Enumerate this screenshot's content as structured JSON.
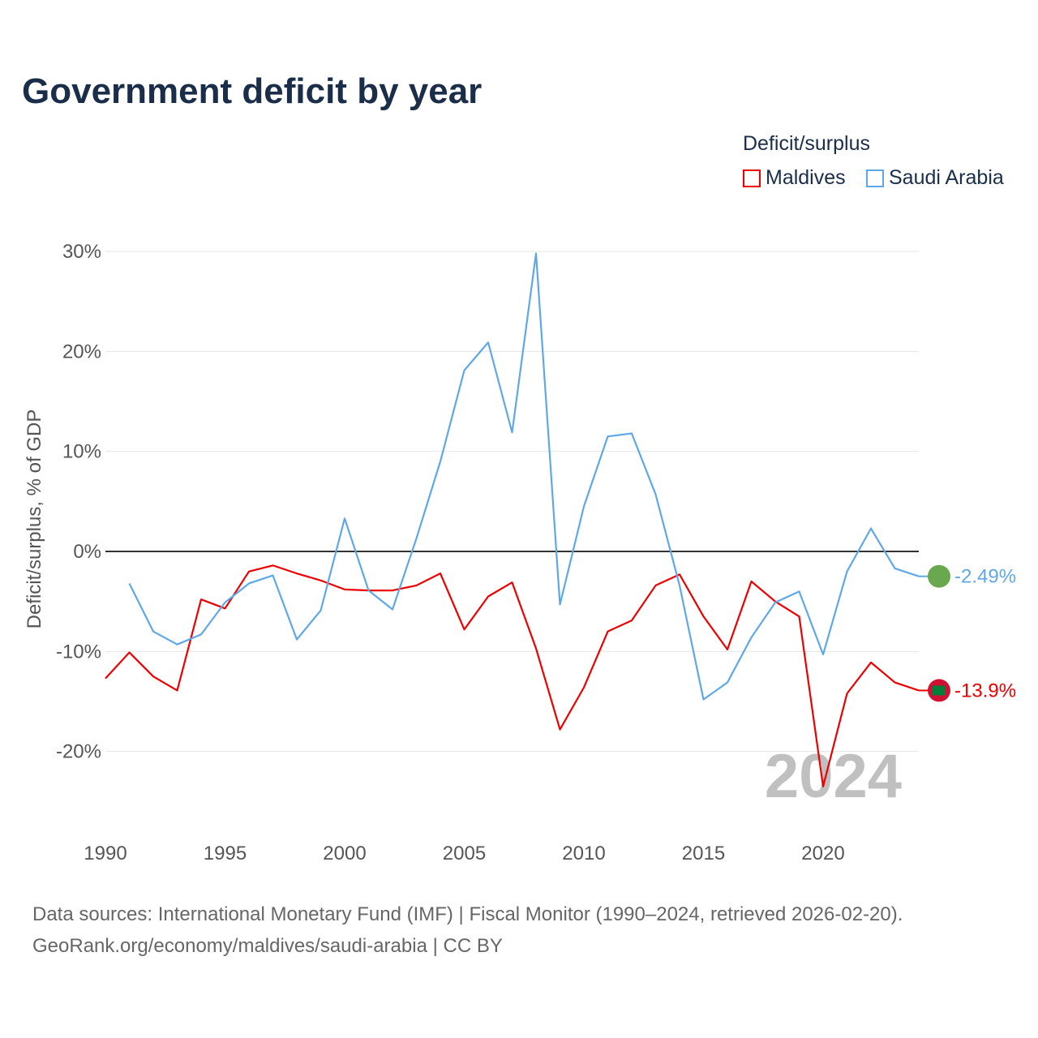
{
  "chart_data": {
    "type": "line",
    "title": "Government deficit by year",
    "ylabel": "Deficit/surplus, % of GDP",
    "xlabel": "",
    "legend_title": "Deficit/surplus",
    "legend_position": "top-right",
    "xlim": [
      1990,
      2024
    ],
    "ylim": [
      -27,
      32
    ],
    "xticks": [
      1990,
      1995,
      2000,
      2005,
      2010,
      2015,
      2020
    ],
    "xtick_labels": [
      "1990",
      "1995",
      "2000",
      "2005",
      "2010",
      "2015",
      "2020"
    ],
    "yticks": [
      30,
      20,
      10,
      0,
      -10,
      -20
    ],
    "ytick_labels": [
      "30%",
      "20%",
      "10%",
      "0%",
      "-10%",
      "-20%"
    ],
    "grid": true,
    "year_watermark": "2024",
    "series": [
      {
        "name": "Maldives",
        "color": "#ee0000",
        "end_label": "-13.9%",
        "x": [
          1990,
          1991,
          1992,
          1993,
          1994,
          1995,
          1996,
          1997,
          1998,
          1999,
          2000,
          2001,
          2002,
          2003,
          2004,
          2005,
          2006,
          2007,
          2008,
          2009,
          2010,
          2011,
          2012,
          2013,
          2014,
          2015,
          2016,
          2017,
          2018,
          2019,
          2020,
          2021,
          2022,
          2023,
          2024
        ],
        "values": [
          -12.7,
          -10.1,
          -12.5,
          -13.9,
          -4.8,
          -5.7,
          -2.0,
          -1.4,
          -2.2,
          -2.9,
          -3.8,
          -3.9,
          -3.9,
          -3.4,
          -2.2,
          -7.8,
          -4.5,
          -3.1,
          -9.7,
          -17.8,
          -13.6,
          -8.0,
          -6.9,
          -3.4,
          -2.3,
          -6.5,
          -9.8,
          -3.0,
          -5.0,
          -6.5,
          -23.5,
          -14.2,
          -11.1,
          -13.1,
          -13.9
        ]
      },
      {
        "name": "Saudi Arabia",
        "color": "#5fa8e8",
        "end_label": "-2.49%",
        "x": [
          1991,
          1992,
          1993,
          1994,
          1995,
          1996,
          1997,
          1998,
          1999,
          2000,
          2001,
          2002,
          2003,
          2004,
          2005,
          2006,
          2007,
          2008,
          2009,
          2010,
          2011,
          2012,
          2013,
          2014,
          2015,
          2016,
          2017,
          2018,
          2019,
          2020,
          2021,
          2022,
          2023,
          2024
        ],
        "values": [
          -3.2,
          -8.0,
          -9.3,
          -8.3,
          -5.1,
          -3.2,
          -2.4,
          -8.8,
          -5.9,
          3.3,
          -3.9,
          -5.8,
          1.3,
          9.0,
          18.1,
          20.9,
          11.9,
          29.8,
          -5.3,
          4.5,
          11.5,
          11.8,
          5.7,
          -3.4,
          -14.8,
          -13.1,
          -8.6,
          -5.1,
          -4.0,
          -10.3,
          -2.0,
          2.3,
          -1.7,
          -2.49
        ]
      }
    ]
  },
  "source": {
    "line1": "Data sources: International Monetary Fund (IMF) | Fiscal Monitor (1990–2024, retrieved 2026-02-20).",
    "line2": "GeoRank.org/economy/maldives/saudi-arabia | CC BY"
  }
}
